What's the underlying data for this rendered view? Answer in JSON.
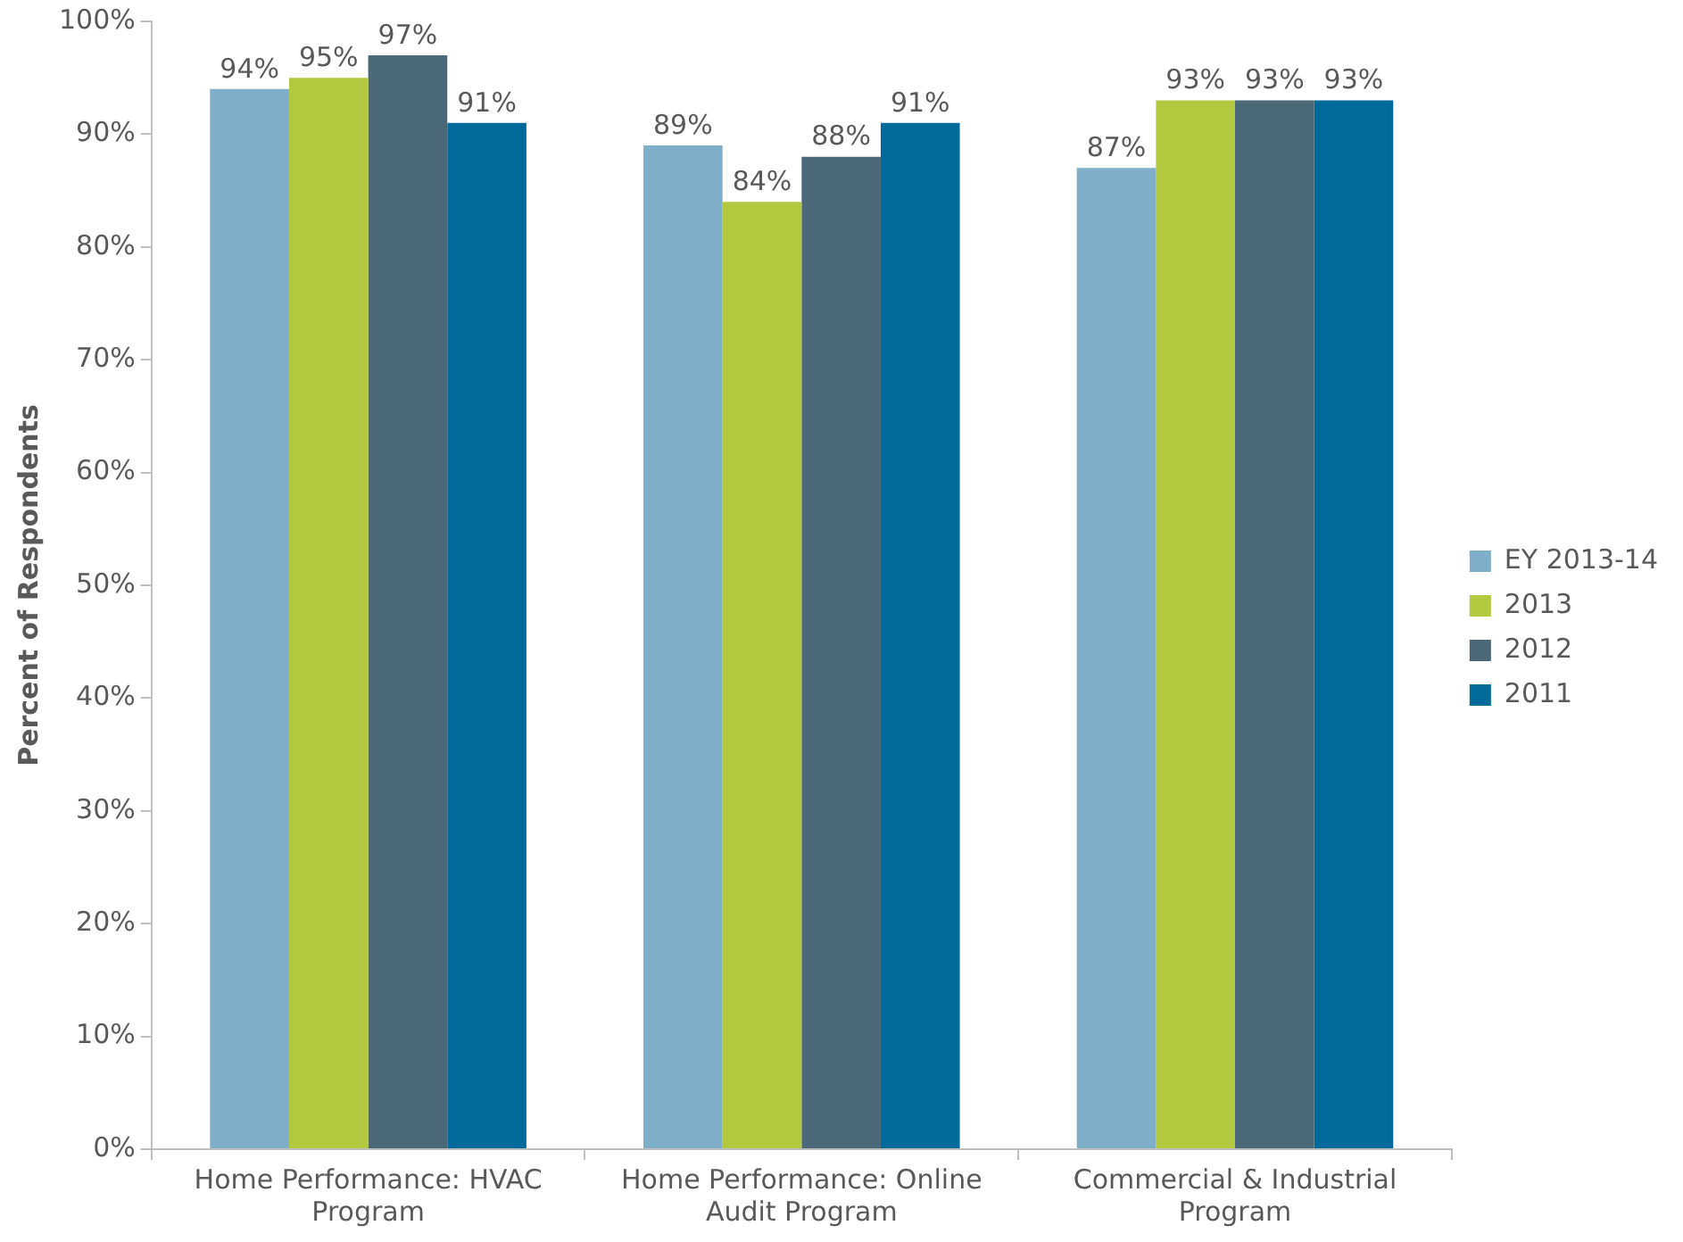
{
  "chart_data": {
    "type": "bar",
    "ylabel": "Percent of Respondents",
    "categories": [
      "Home Performance: HVAC Program",
      "Home Performance: Online Audit Program",
      "Commercial & Industrial Program"
    ],
    "series": [
      {
        "name": "EY 2013-14",
        "color": "#7fafc8",
        "values": [
          94,
          89,
          87
        ],
        "value_labels": [
          "94%",
          "89%",
          "87%"
        ]
      },
      {
        "name": "2013",
        "color": "#b2c93f",
        "values": [
          95,
          84,
          93
        ],
        "value_labels": [
          "95%",
          "84%",
          "93%"
        ]
      },
      {
        "name": "2012",
        "color": "#4a6877",
        "values": [
          97,
          88,
          93
        ],
        "value_labels": [
          "97%",
          "88%",
          "93%"
        ]
      },
      {
        "name": "2011",
        "color": "#006a9a",
        "values": [
          91,
          91,
          93
        ],
        "value_labels": [
          "91%",
          "91%",
          "93%"
        ]
      }
    ],
    "ylim": [
      0,
      100
    ],
    "yticks": [
      {
        "value": 0,
        "label": "0%"
      },
      {
        "value": 10,
        "label": "10%"
      },
      {
        "value": 20,
        "label": "20%"
      },
      {
        "value": 30,
        "label": "30%"
      },
      {
        "value": 40,
        "label": "40%"
      },
      {
        "value": 50,
        "label": "50%"
      },
      {
        "value": 60,
        "label": "60%"
      },
      {
        "value": 70,
        "label": "70%"
      },
      {
        "value": 80,
        "label": "80%"
      },
      {
        "value": 90,
        "label": "90%"
      },
      {
        "value": 100,
        "label": "100%"
      }
    ],
    "grid": false,
    "legend": "right"
  }
}
